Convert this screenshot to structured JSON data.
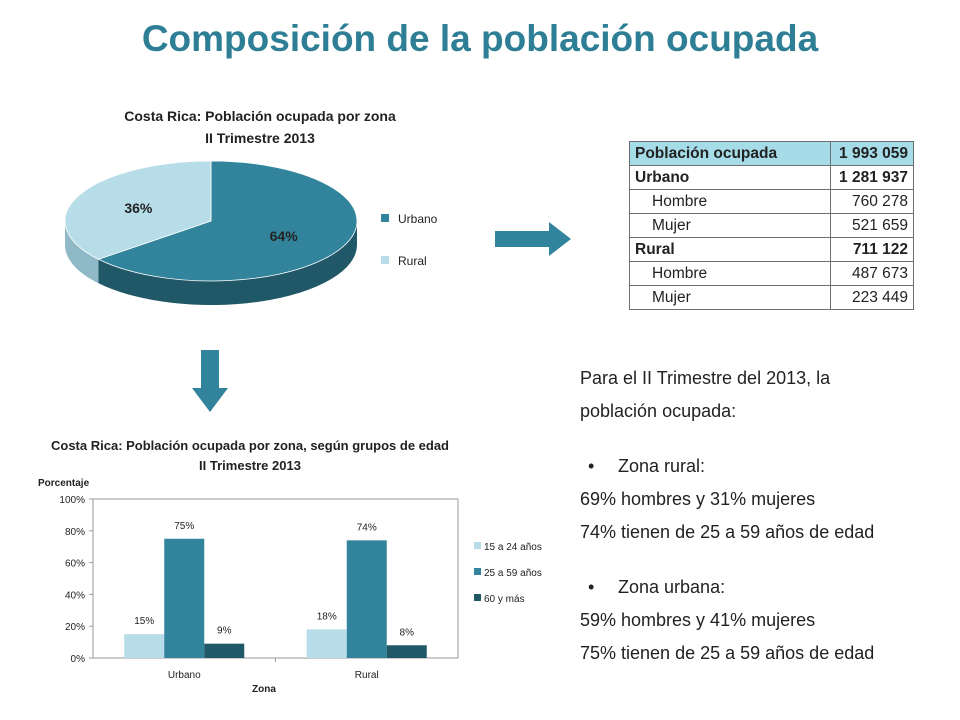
{
  "slide_title": "Composición de la población ocupada",
  "colors": {
    "title": "#2e7f96",
    "urbano": "#31849b",
    "rural": "#b7dde8",
    "teal_dark": "#215868",
    "table_header": "#a6dbe8",
    "arrow": "#31849b"
  },
  "chart_data": [
    {
      "type": "pie",
      "title_line1": "Costa Rica: Población ocupada por zona",
      "title_line2": "II Trimestre 2013",
      "labels": [
        "Urbano",
        "Rural"
      ],
      "values": [
        64,
        36
      ],
      "data_labels": [
        "64%",
        "36%"
      ],
      "legend": [
        "Urbano",
        "Rural"
      ],
      "legend_position": "right",
      "style": "3d"
    },
    {
      "type": "bar",
      "title_line1": "Costa Rica: Población ocupada por zona, según grupos de edad",
      "title_line2": "II Trimestre 2013",
      "ylabel": "Porcentaje",
      "xlabel": "Zona",
      "categories": [
        "Urbano",
        "Rural"
      ],
      "series": [
        {
          "name": "15 a 24 años",
          "values": [
            15,
            18
          ],
          "labels": [
            "15%",
            "18%"
          ]
        },
        {
          "name": "25 a 59 años",
          "values": [
            75,
            74
          ],
          "labels": [
            "75%",
            "74%"
          ]
        },
        {
          "name": "60 y más",
          "values": [
            9,
            8
          ],
          "labels": [
            "9%",
            "8%"
          ]
        }
      ],
      "ylim": [
        0,
        100
      ],
      "yticks": [
        0,
        20,
        40,
        60,
        80,
        100
      ],
      "ytick_labels": [
        "0%",
        "20%",
        "40%",
        "60%",
        "80%",
        "100%"
      ],
      "grid": false,
      "legend_position": "right"
    }
  ],
  "table": {
    "rows": [
      {
        "label": "Población ocupada",
        "value": "1 993 059",
        "style": "head"
      },
      {
        "label": "Urbano",
        "value": "1 281 937",
        "style": "bold"
      },
      {
        "label": "Hombre",
        "value": "760 278",
        "style": "sub"
      },
      {
        "label": "Mujer",
        "value": "521 659",
        "style": "sub"
      },
      {
        "label": "Rural",
        "value": "711 122",
        "style": "bold"
      },
      {
        "label": "Hombre",
        "value": "487 673",
        "style": "sub"
      },
      {
        "label": "Mujer",
        "value": "223 449",
        "style": "sub"
      }
    ]
  },
  "summary": {
    "intro_line1": "Para el II Trimestre del 2013, la",
    "intro_line2": "población ocupada:",
    "bullet_glyph": "•",
    "rural_heading": "Zona rural:",
    "rural_line1": "69% hombres y 31% mujeres",
    "rural_line2": "74% tienen de 25 a 59 años de edad",
    "urban_heading": "Zona urbana:",
    "urban_line1": "59% hombres y 41% mujeres",
    "urban_line2": "75% tienen de 25 a 59 años de edad"
  }
}
